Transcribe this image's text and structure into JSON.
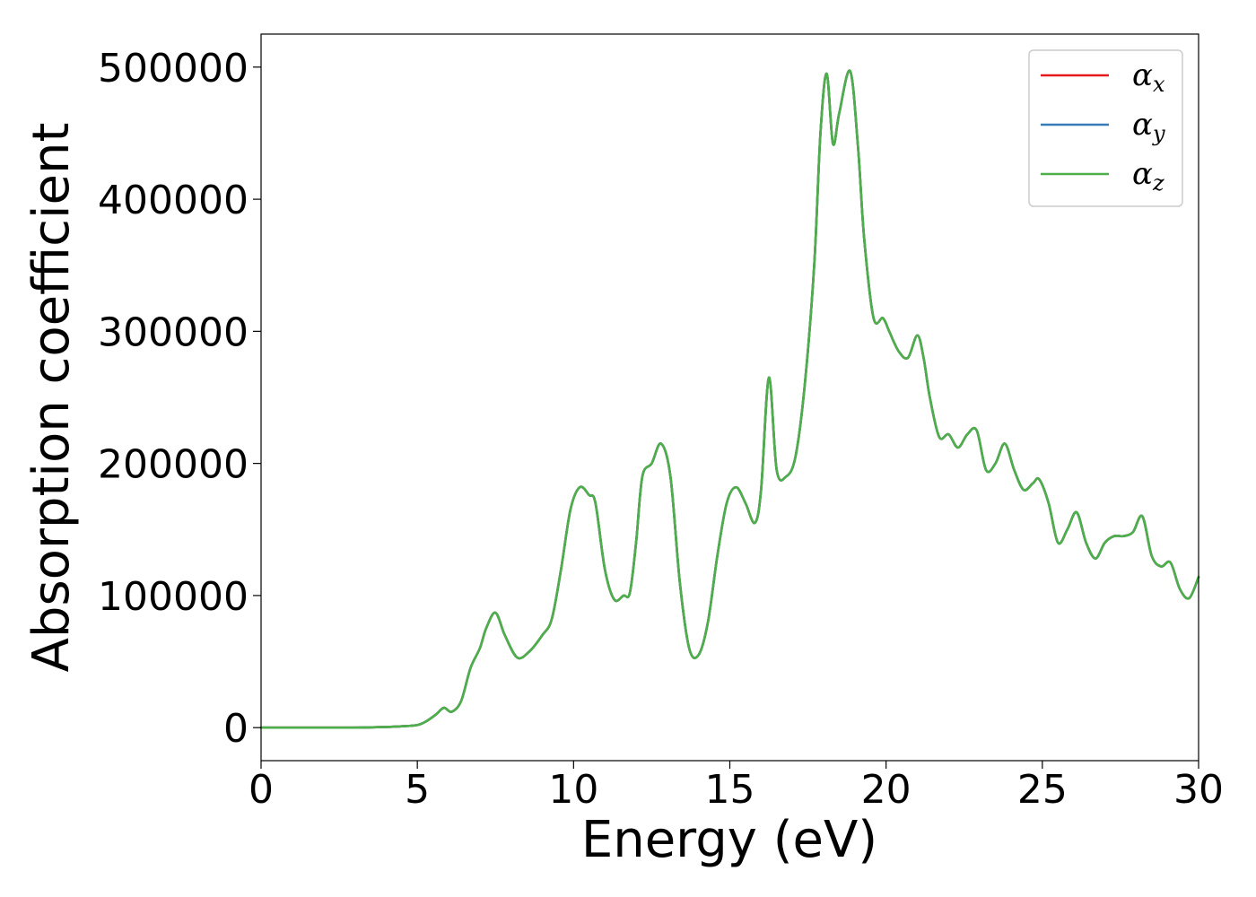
{
  "chart_data": {
    "type": "line",
    "title": "",
    "xlabel": "Energy (eV)",
    "ylabel": "Absorption coefficient",
    "xlim": [
      0,
      30
    ],
    "ylim": [
      -25000,
      525000
    ],
    "xticks": [
      0,
      5,
      10,
      15,
      20,
      25,
      30
    ],
    "xtick_labels": [
      "0",
      "5",
      "10",
      "15",
      "20",
      "25",
      "30"
    ],
    "yticks": [
      0,
      100000,
      200000,
      300000,
      400000,
      500000
    ],
    "ytick_labels": [
      "0",
      "100000",
      "200000",
      "300000",
      "400000",
      "500000"
    ],
    "grid": false,
    "legend_placement": "top-right",
    "x": [
      0,
      1,
      2,
      3,
      4,
      4.5,
      5,
      5.3,
      5.6,
      5.85,
      6.1,
      6.4,
      6.7,
      7.0,
      7.2,
      7.5,
      7.8,
      8.2,
      8.6,
      9.0,
      9.3,
      9.6,
      9.9,
      10.2,
      10.5,
      10.7,
      11.0,
      11.3,
      11.6,
      11.8,
      12.0,
      12.2,
      12.5,
      12.8,
      13.1,
      13.4,
      13.7,
      14.0,
      14.3,
      14.6,
      14.9,
      15.2,
      15.5,
      15.8,
      16.0,
      16.25,
      16.5,
      16.8,
      17.1,
      17.4,
      17.7,
      17.9,
      18.1,
      18.3,
      18.5,
      18.85,
      19.1,
      19.3,
      19.6,
      19.9,
      20.1,
      20.4,
      20.7,
      21.0,
      21.2,
      21.4,
      21.7,
      22.0,
      22.3,
      22.6,
      22.9,
      23.2,
      23.5,
      23.8,
      24.1,
      24.4,
      24.7,
      24.9,
      25.2,
      25.5,
      25.8,
      26.1,
      26.4,
      26.7,
      27.0,
      27.3,
      27.6,
      27.9,
      28.2,
      28.5,
      28.8,
      29.1,
      29.4,
      29.7,
      30.0
    ],
    "series": [
      {
        "name": "α_x",
        "color": "#e41a1c",
        "values": [
          0,
          0,
          0,
          0,
          500,
          1000,
          2000,
          5000,
          10000,
          15000,
          12000,
          20000,
          45000,
          60000,
          75000,
          87000,
          70000,
          53000,
          58000,
          70000,
          82000,
          120000,
          165000,
          182000,
          176000,
          170000,
          120000,
          97000,
          100000,
          102000,
          140000,
          190000,
          200000,
          215000,
          190000,
          110000,
          60000,
          55000,
          80000,
          130000,
          170000,
          182000,
          170000,
          155000,
          180000,
          265000,
          195000,
          190000,
          205000,
          260000,
          350000,
          450000,
          495000,
          442000,
          465000,
          497000,
          440000,
          370000,
          310000,
          310000,
          300000,
          285000,
          280000,
          297000,
          280000,
          250000,
          220000,
          222000,
          212000,
          222000,
          225000,
          195000,
          200000,
          215000,
          195000,
          180000,
          185000,
          188000,
          170000,
          140000,
          150000,
          163000,
          140000,
          128000,
          140000,
          145000,
          145000,
          148000,
          160000,
          130000,
          122000,
          125000,
          105000,
          98000,
          114000
        ]
      },
      {
        "name": "α_y",
        "color": "#377eb8",
        "values": [
          0,
          0,
          0,
          0,
          500,
          1000,
          2000,
          5000,
          10000,
          15000,
          12000,
          20000,
          45000,
          60000,
          75000,
          87000,
          70000,
          53000,
          58000,
          70000,
          82000,
          120000,
          165000,
          182000,
          176000,
          170000,
          120000,
          97000,
          100000,
          102000,
          140000,
          190000,
          200000,
          215000,
          190000,
          110000,
          60000,
          55000,
          80000,
          130000,
          170000,
          182000,
          170000,
          155000,
          180000,
          265000,
          195000,
          190000,
          205000,
          260000,
          350000,
          450000,
          495000,
          442000,
          465000,
          497000,
          440000,
          370000,
          310000,
          310000,
          300000,
          285000,
          280000,
          297000,
          280000,
          250000,
          220000,
          222000,
          212000,
          222000,
          225000,
          195000,
          200000,
          215000,
          195000,
          180000,
          185000,
          188000,
          170000,
          140000,
          150000,
          163000,
          140000,
          128000,
          140000,
          145000,
          145000,
          148000,
          160000,
          130000,
          122000,
          125000,
          105000,
          98000,
          114000
        ]
      },
      {
        "name": "α_z",
        "color": "#4daf4a",
        "values": [
          0,
          0,
          0,
          0,
          500,
          1000,
          2000,
          5000,
          10000,
          15000,
          12000,
          20000,
          45000,
          60000,
          75000,
          87000,
          70000,
          53000,
          58000,
          70000,
          82000,
          120000,
          165000,
          182000,
          176000,
          170000,
          120000,
          97000,
          100000,
          102000,
          140000,
          190000,
          200000,
          215000,
          190000,
          110000,
          60000,
          55000,
          80000,
          130000,
          170000,
          182000,
          170000,
          155000,
          180000,
          265000,
          195000,
          190000,
          205000,
          260000,
          350000,
          450000,
          495000,
          442000,
          465000,
          497000,
          440000,
          370000,
          310000,
          310000,
          300000,
          285000,
          280000,
          297000,
          280000,
          250000,
          220000,
          222000,
          212000,
          222000,
          225000,
          195000,
          200000,
          215000,
          195000,
          180000,
          185000,
          188000,
          170000,
          140000,
          150000,
          163000,
          140000,
          128000,
          140000,
          145000,
          145000,
          148000,
          160000,
          130000,
          122000,
          125000,
          105000,
          98000,
          114000
        ]
      }
    ],
    "legend": [
      {
        "symbol": "α",
        "sub": "x",
        "color": "#e41a1c"
      },
      {
        "symbol": "α",
        "sub": "y",
        "color": "#377eb8"
      },
      {
        "symbol": "α",
        "sub": "z",
        "color": "#4daf4a"
      }
    ]
  }
}
